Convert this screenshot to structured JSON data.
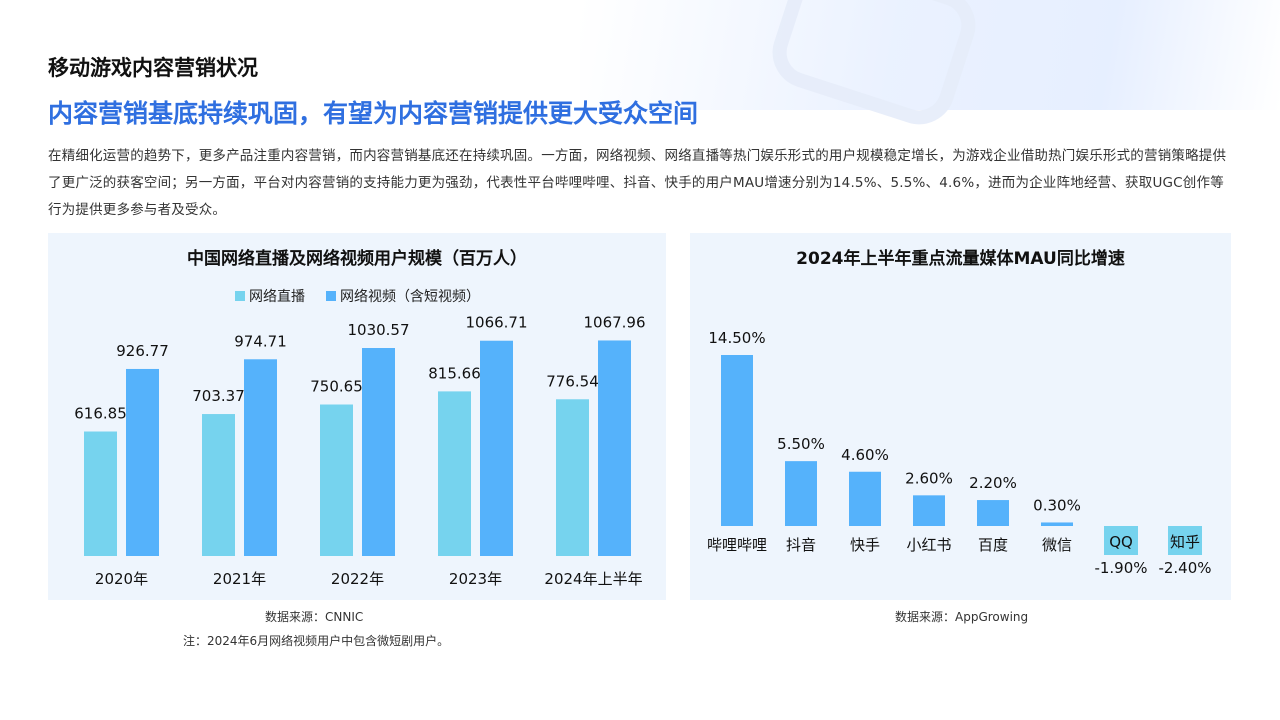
{
  "header": {
    "section_title": "移动游戏内容营销状况",
    "headline": "内容营销基底持续巩固，有望为内容营销提供更大受众空间",
    "body": "在精细化运营的趋势下，更多产品注重内容营销，而内容营销基底还在持续巩固。一方面，网络视频、网络直播等热门娱乐形式的用户规模稳定增长，为游戏企业借助热门娱乐形式的营销策略提供了更广泛的获客空间；另一方面，平台对内容营销的支持能力更为强劲，代表性平台哔哩哔哩、抖音、快手的用户MAU增速分别为14.5%、5.5%、4.6%，进而为企业阵地经营、获取UGC创作等行为提供更多参与者及受众。"
  },
  "colors": {
    "headline": "#2f6fe0",
    "live": "#76d3ee",
    "video": "#55b2fb",
    "panel_bg": "#eef5fd"
  },
  "chart_data": [
    {
      "type": "bar",
      "title": "中国网络直播及网络视频用户规模（百万人）",
      "categories": [
        "2020年",
        "2021年",
        "2022年",
        "2023年",
        "2024年上半年"
      ],
      "series": [
        {
          "name": "网络直播",
          "values": [
            616.85,
            703.37,
            750.65,
            815.66,
            776.54
          ],
          "color": "#76d3ee"
        },
        {
          "name": "网络视频（含短视频）",
          "values": [
            926.77,
            974.71,
            1030.57,
            1066.71,
            1067.96
          ],
          "color": "#55b2fb"
        }
      ],
      "value_labels": [
        [
          "616.85",
          "703.37",
          "750.65",
          "815.66",
          "776.54"
        ],
        [
          "926.77",
          "974.71",
          "1030.57",
          "1066.71",
          "1067.96"
        ]
      ],
      "ylim": [
        0,
        1100
      ],
      "legend": "top-center",
      "grid": false
    },
    {
      "type": "bar",
      "title": "2024年上半年重点流量媒体MAU同比增速",
      "categories": [
        "哔哩哔哩",
        "抖音",
        "快手",
        "小红书",
        "百度",
        "微信",
        "QQ",
        "知乎"
      ],
      "values": [
        14.5,
        5.5,
        4.6,
        2.6,
        2.2,
        0.3,
        -1.9,
        -2.4
      ],
      "value_labels": [
        "14.50%",
        "5.50%",
        "4.60%",
        "2.60%",
        "2.20%",
        "0.30%",
        "-1.90%",
        "-2.40%"
      ],
      "color": "#55b2fb",
      "negative_label_bg": "#76d3ee",
      "ylim": [
        -2.4,
        14.5
      ],
      "legend": "none",
      "grid": false
    }
  ],
  "sources": {
    "left_source": "数据来源：CNNIC",
    "left_note": "注：2024年6月网络视频用户中包含微短剧用户。",
    "right_source": "数据来源：AppGrowing"
  }
}
